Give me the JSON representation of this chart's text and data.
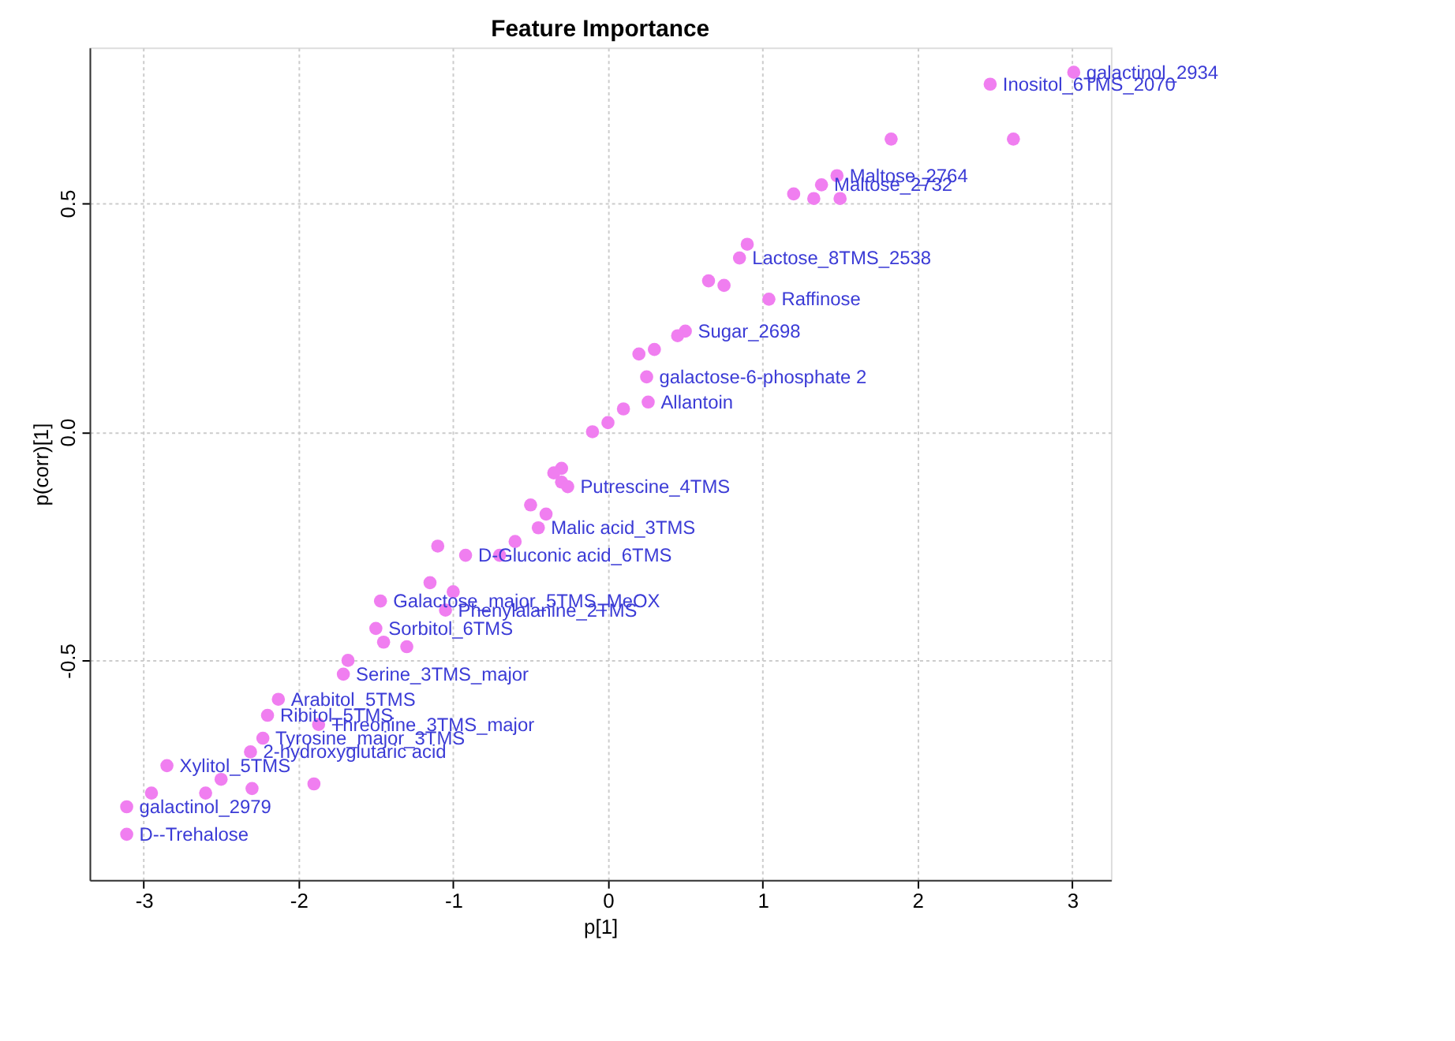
{
  "chart_data": {
    "type": "scatter",
    "title": "Feature Importance",
    "xlabel": "p[1]",
    "ylabel": "p(corr)[1]",
    "xlim": [
      -3.35,
      3.25
    ],
    "ylim": [
      -0.98,
      0.84
    ],
    "xticks": [
      -3,
      -2,
      -1,
      0,
      1,
      2,
      3
    ],
    "yticks": [
      {
        "value": -0.5,
        "label": "-0.5"
      },
      {
        "value": 0,
        "label": "0.0"
      },
      {
        "value": 0.5,
        "label": "0.5"
      }
    ],
    "grid": true,
    "marker": "circle",
    "series": [
      {
        "color": "#f07ef0",
        "x": [
          3.01,
          2.47,
          1.83,
          2.62,
          1.48,
          1.38,
          1.33,
          1.2,
          1.5,
          0.9,
          0.85,
          0.65,
          0.75,
          1.04,
          0.5,
          0.45,
          0.3,
          0.2,
          0.25,
          0.26,
          0.1,
          0.0,
          -0.1,
          -0.3,
          -0.35,
          -0.3,
          -0.26,
          -0.5,
          -0.4,
          -0.45,
          -1.1,
          -0.6,
          -0.7,
          -0.92,
          -1.0,
          -1.15,
          -1.47,
          -1.05,
          -1.5,
          -1.3,
          -1.45,
          -1.68,
          -1.71,
          -2.13,
          -2.2,
          -1.87,
          -2.23,
          -2.31,
          -2.85,
          -2.5,
          -2.3,
          -1.9,
          -2.6,
          -2.95,
          -3.11,
          -3.11
        ],
        "values": [
          0.786,
          0.76,
          0.64,
          0.64,
          0.56,
          0.54,
          0.51,
          0.52,
          0.51,
          0.41,
          0.38,
          0.33,
          0.32,
          0.29,
          0.22,
          0.21,
          0.18,
          0.17,
          0.12,
          0.065,
          0.05,
          0.02,
          0.0,
          -0.08,
          -0.09,
          -0.11,
          -0.12,
          -0.16,
          -0.18,
          -0.21,
          -0.25,
          -0.24,
          -0.27,
          -0.27,
          -0.35,
          -0.33,
          -0.37,
          -0.39,
          -0.43,
          -0.47,
          -0.46,
          -0.5,
          -0.53,
          -0.585,
          -0.62,
          -0.64,
          -0.67,
          -0.7,
          -0.73,
          -0.76,
          -0.78,
          -0.77,
          -0.79,
          -0.79,
          -0.82,
          -0.88
        ]
      }
    ],
    "annotations": [
      {
        "text": "galactinol_2934",
        "x": 3.01,
        "y": 0.786
      },
      {
        "text": "Inositol_6TMS_2070",
        "x": 2.47,
        "y": 0.76
      },
      {
        "text": "Maltose_2764",
        "x": 1.48,
        "y": 0.56
      },
      {
        "text": "Maltose_2732",
        "x": 1.38,
        "y": 0.54
      },
      {
        "text": "Lactose_8TMS_2538",
        "x": 0.85,
        "y": 0.38
      },
      {
        "text": "Raffinose",
        "x": 1.04,
        "y": 0.29
      },
      {
        "text": "Sugar_2698",
        "x": 0.5,
        "y": 0.22
      },
      {
        "text": "galactose-6-phosphate 2",
        "x": 0.25,
        "y": 0.12
      },
      {
        "text": "Allantoin",
        "x": 0.26,
        "y": 0.065
      },
      {
        "text": "Putrescine_4TMS",
        "x": -0.26,
        "y": -0.12
      },
      {
        "text": "Malic acid_3TMS",
        "x": -0.45,
        "y": -0.21
      },
      {
        "text": "D-Gluconic acid_6TMS",
        "x": -0.92,
        "y": -0.27
      },
      {
        "text": "Galactose_major_5TMS_MeOX",
        "x": -1.47,
        "y": -0.37
      },
      {
        "text": "Phenylalanine_2TMS",
        "x": -1.05,
        "y": -0.39
      },
      {
        "text": "Sorbitol_6TMS",
        "x": -1.5,
        "y": -0.43
      },
      {
        "text": "Serine_3TMS_major",
        "x": -1.71,
        "y": -0.53
      },
      {
        "text": "Arabitol_5TMS",
        "x": -2.13,
        "y": -0.585
      },
      {
        "text": "Ribitol_5TMS",
        "x": -2.2,
        "y": -0.62
      },
      {
        "text": "Threonine_3TMS_major",
        "x": -1.87,
        "y": -0.64
      },
      {
        "text": "Tyrosine_major_3TMS",
        "x": -2.23,
        "y": -0.67
      },
      {
        "text": "2-hydroxyglutaric acid",
        "x": -2.31,
        "y": -0.7
      },
      {
        "text": "Xylitol_5TMS",
        "x": -2.85,
        "y": -0.73
      },
      {
        "text": "galactinol_2979",
        "x": -3.11,
        "y": -0.82
      },
      {
        "text": "D--Trehalose",
        "x": -3.11,
        "y": -0.88
      }
    ]
  }
}
